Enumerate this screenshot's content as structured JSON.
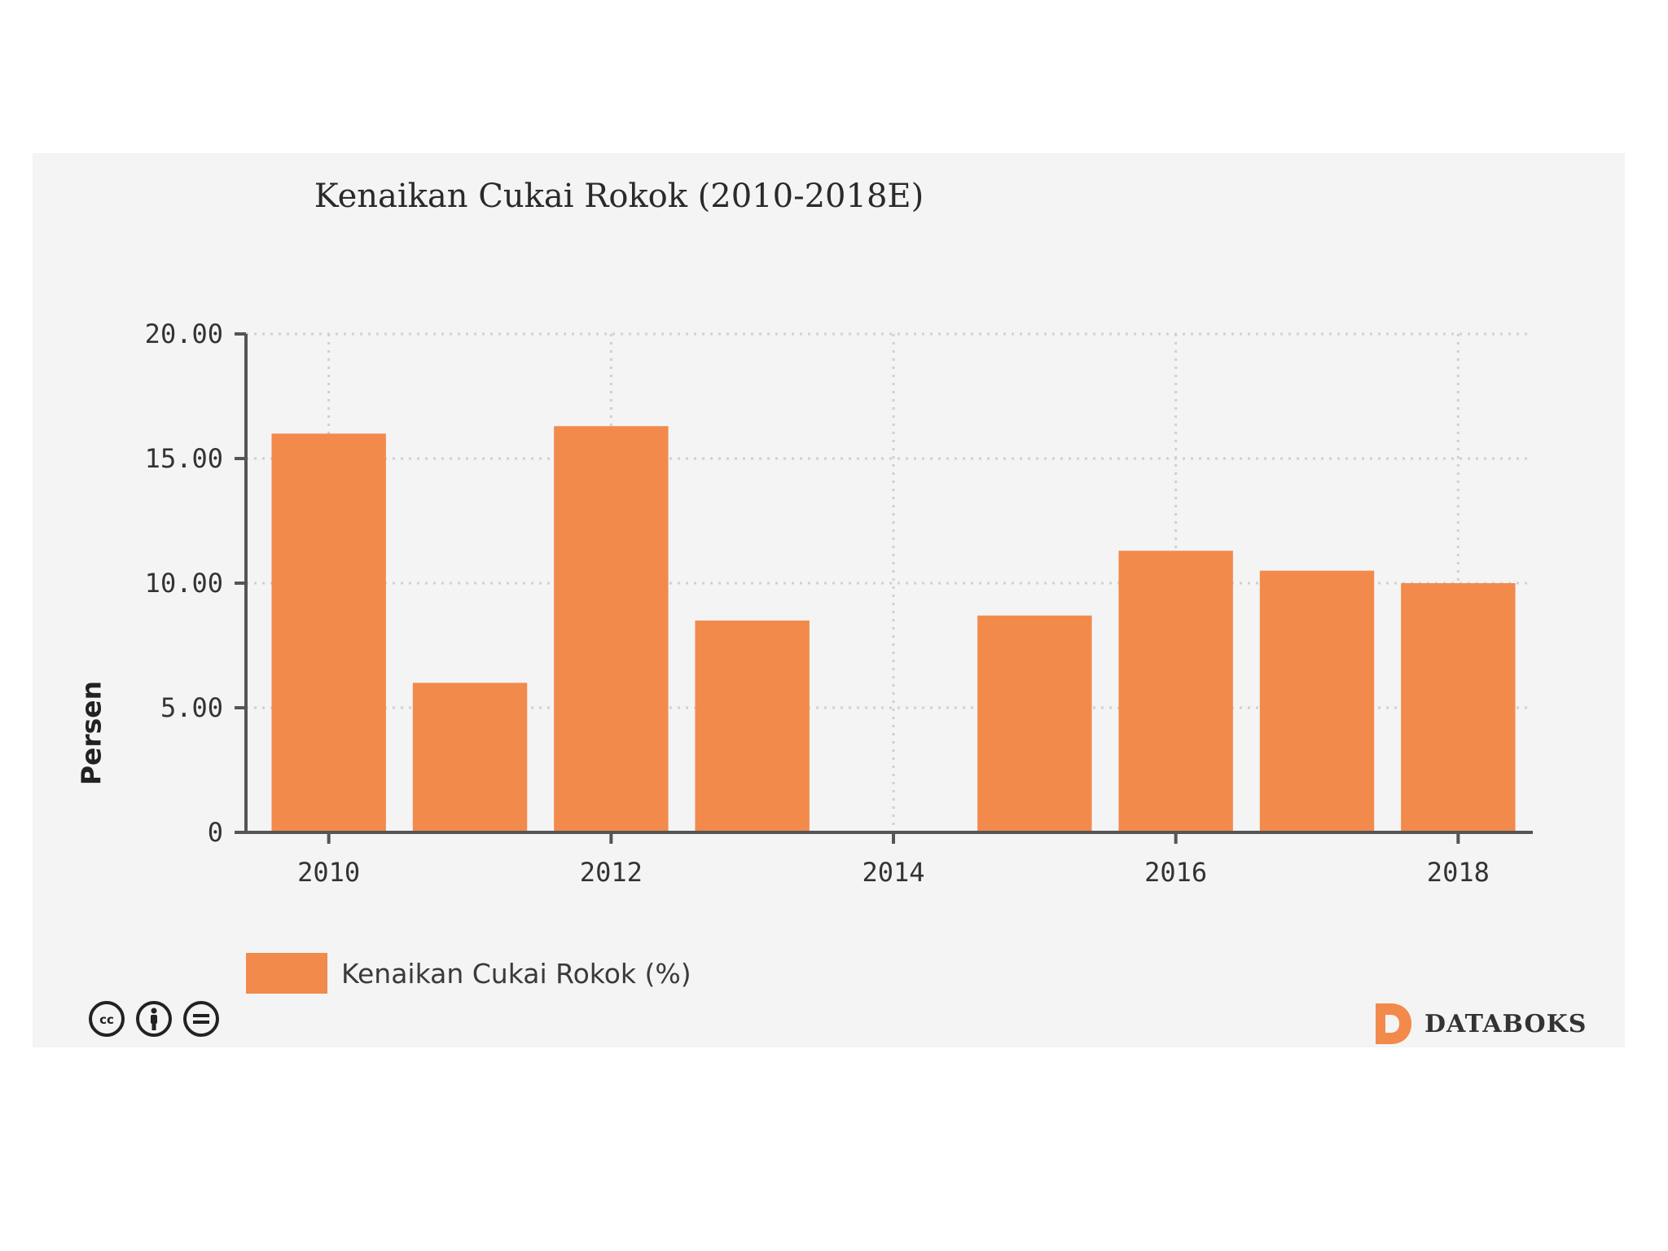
{
  "colors": {
    "card_background": "#f4f4f4",
    "bar": "#f28a4c",
    "axis": "#555555",
    "grid": "#d0d0d0",
    "tick_text": "#333333",
    "brand_accent": "#f28a4c"
  },
  "chart_data": {
    "type": "bar",
    "title": "Kenaikan Cukai Rokok (2010-2018E)",
    "xlabel": "",
    "ylabel": "Persen",
    "categories": [
      "2010",
      "2011",
      "2012",
      "2013",
      "2014",
      "2015",
      "2016",
      "2017",
      "2018"
    ],
    "series": [
      {
        "name": "Kenaikan Cukai Rokok (%)",
        "values": [
          16.0,
          6.0,
          16.3,
          8.5,
          0,
          8.7,
          11.3,
          10.5,
          10.0
        ]
      }
    ],
    "x_tick_labels": [
      "2010",
      "2012",
      "2014",
      "2016",
      "2018"
    ],
    "y_tick_values": [
      0,
      5,
      10,
      15,
      20
    ],
    "y_tick_labels": [
      "0",
      "5.00",
      "10.00",
      "15.00",
      "20.00"
    ],
    "ylim": [
      0,
      20
    ],
    "grid": true,
    "legend_position": "bottom-left"
  },
  "footer": {
    "license_icons": [
      "cc-icon",
      "by-attribution-icon",
      "nd-icon"
    ],
    "brand_logo_icon": "databoks-logo-icon",
    "brand_name": "DATABOKS"
  }
}
